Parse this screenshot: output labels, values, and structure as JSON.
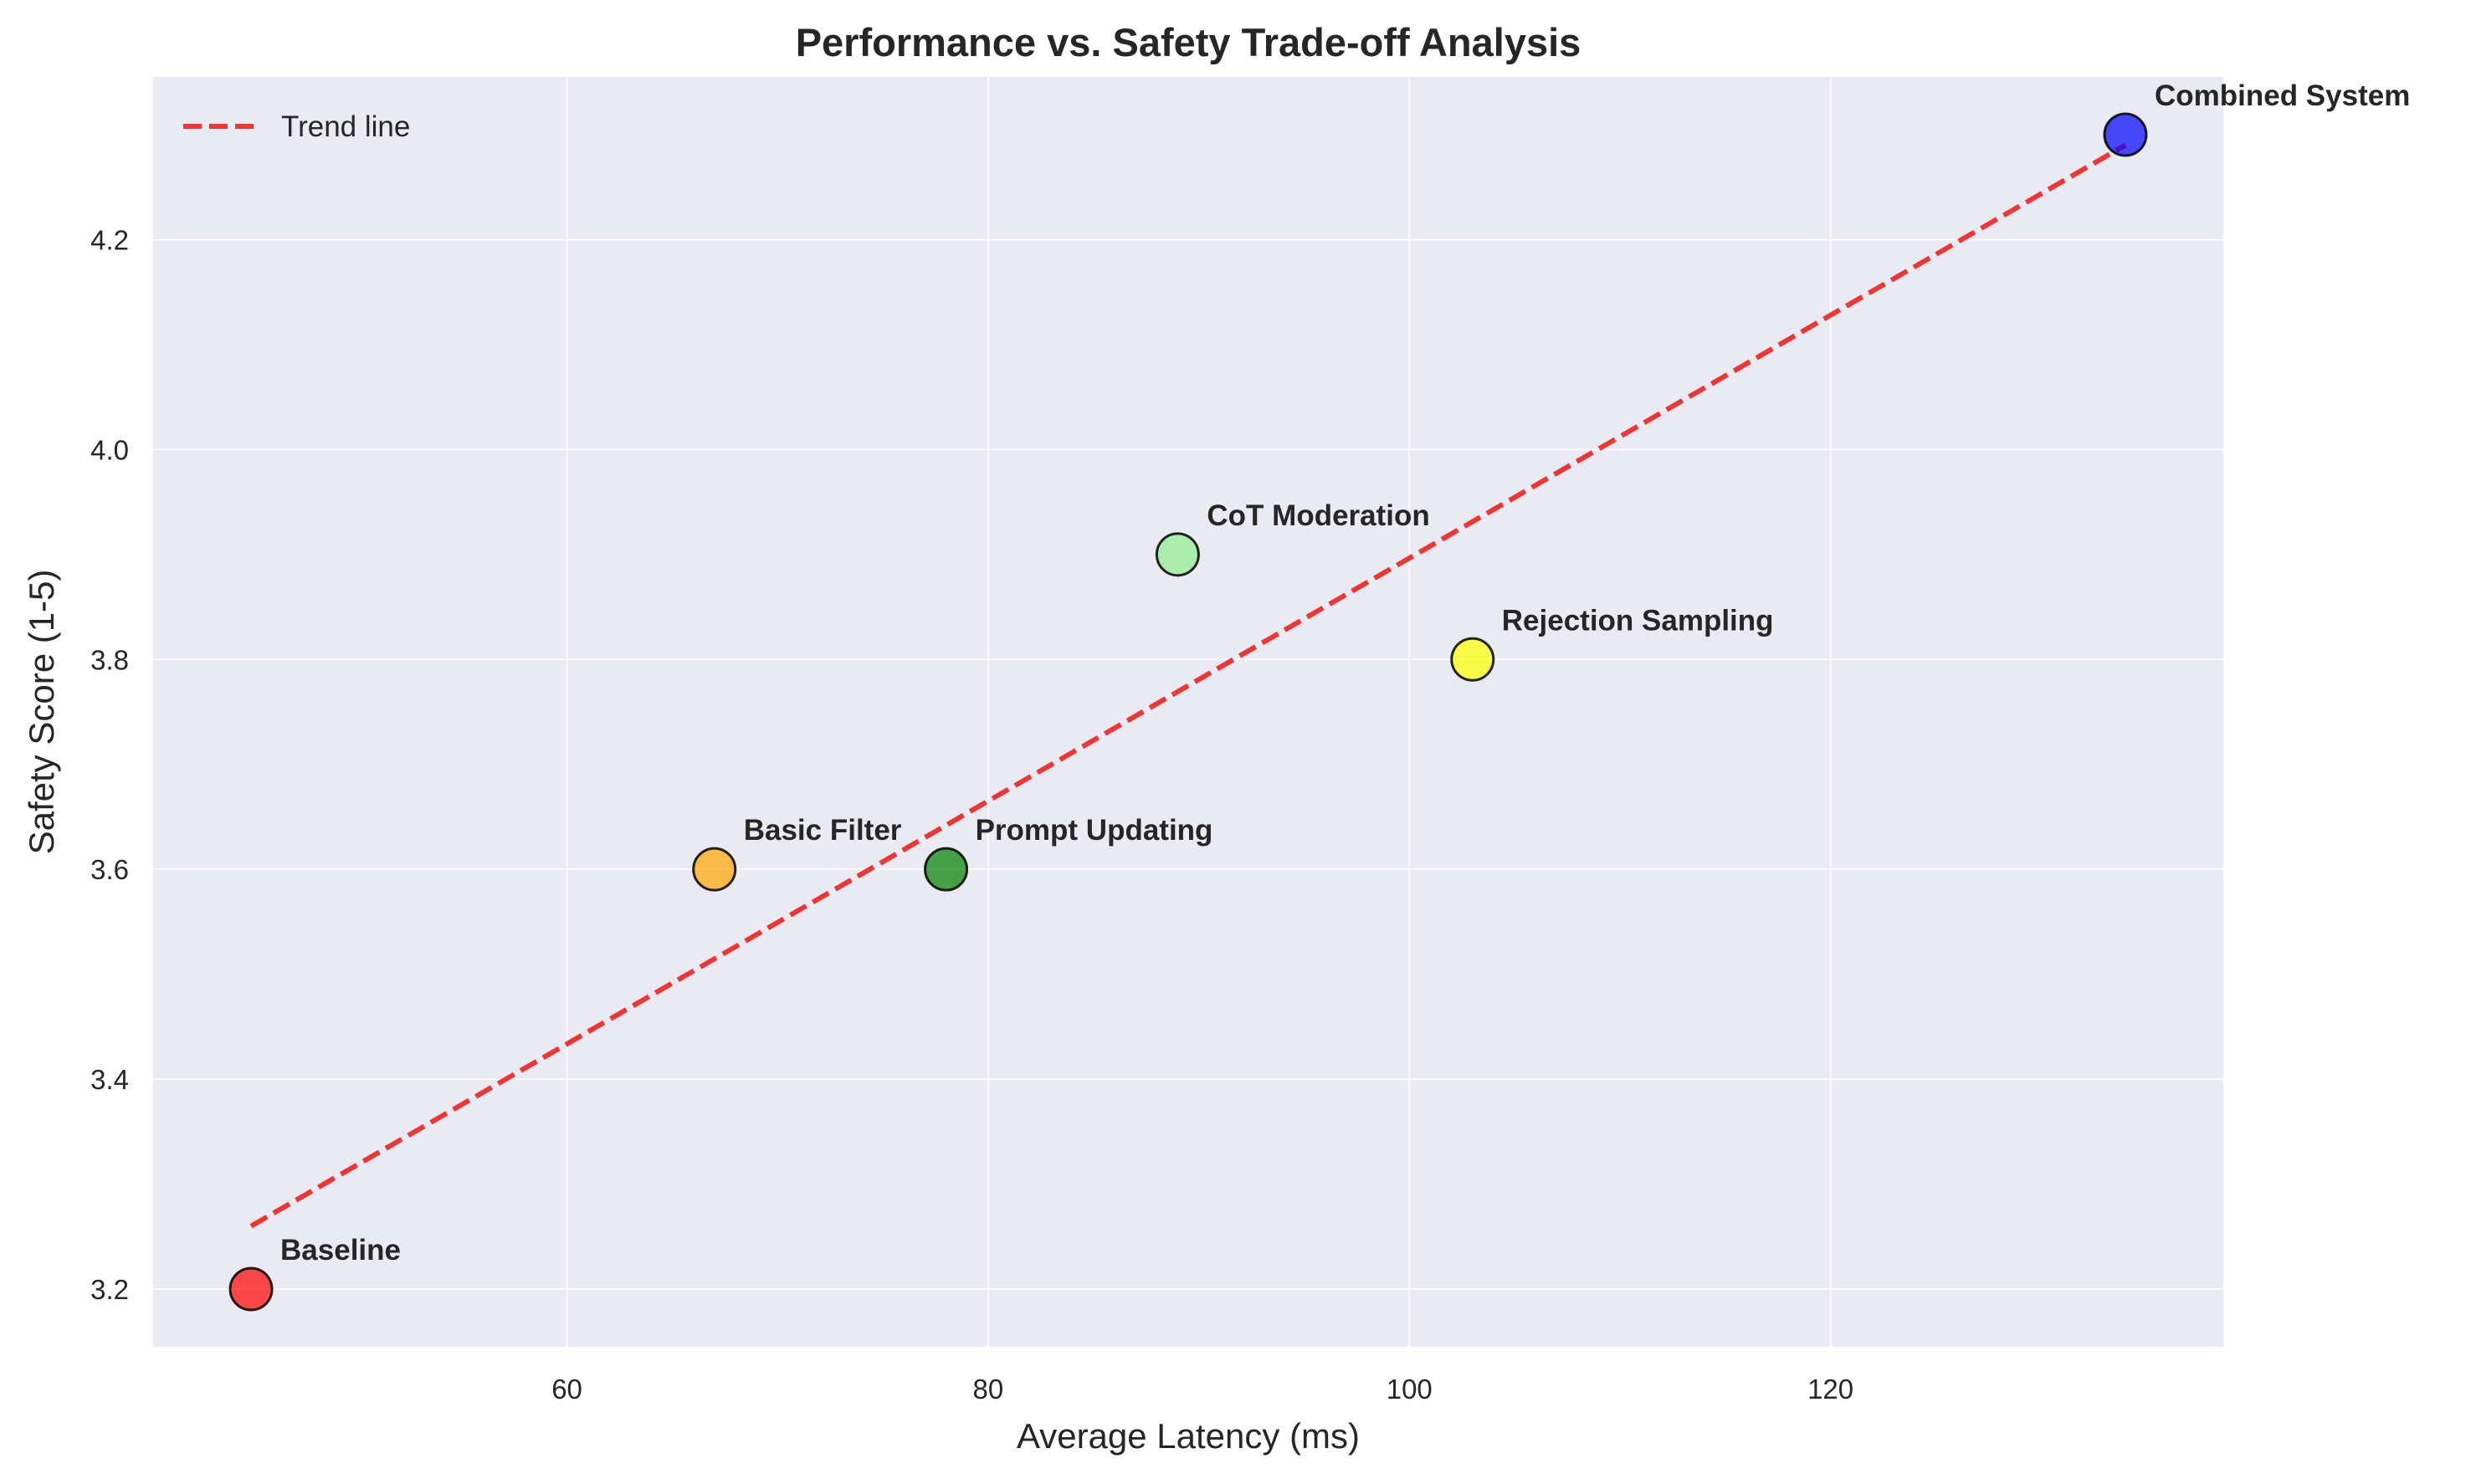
{
  "chart_data": {
    "type": "scatter",
    "title": "Performance vs. Safety Trade-off Analysis",
    "xlabel": "Average Latency (ms)",
    "ylabel": "Safety Score (1-5)",
    "xlim": [
      40.35,
      138.65
    ],
    "ylim": [
      3.145,
      4.355
    ],
    "xticks": [
      60,
      80,
      100,
      120
    ],
    "yticks": [
      3.2,
      3.4,
      3.6,
      3.8,
      4.0,
      4.2
    ],
    "grid": true,
    "background_color": "#eaeaf2",
    "grid_color": "#ffffff",
    "points": [
      {
        "label": "Baseline",
        "x": 45,
        "y": 3.2,
        "color": "#ff0000"
      },
      {
        "label": "Basic Filter",
        "x": 67,
        "y": 3.6,
        "color": "#ffa500"
      },
      {
        "label": "Prompt Updating",
        "x": 78,
        "y": 3.6,
        "color": "#008000"
      },
      {
        "label": "CoT Moderation",
        "x": 89,
        "y": 3.9,
        "color": "#90ee90"
      },
      {
        "label": "Rejection Sampling",
        "x": 103,
        "y": 3.8,
        "color": "#ffff00"
      },
      {
        "label": "Combined System",
        "x": 134,
        "y": 4.3,
        "color": "#0000ff"
      }
    ],
    "trend_line": {
      "label": "Trend line",
      "x": [
        45,
        134
      ],
      "y": [
        3.26,
        4.29
      ],
      "color": "#ee2222",
      "style": "dashed"
    },
    "legend": {
      "placement": "top-left",
      "entries": [
        "Trend line"
      ]
    }
  }
}
